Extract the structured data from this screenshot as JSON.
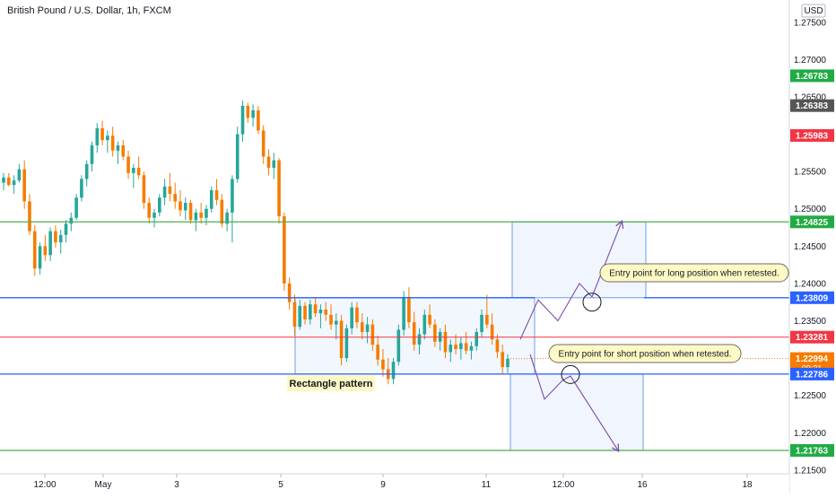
{
  "chart_data": {
    "type": "candlestick",
    "title": "British Pound / U.S. Dollar, 1h, FXCM",
    "currency": "USD",
    "ylim": [
      1.2145,
      1.2775
    ],
    "y_ticks": [
      "1.27500",
      "1.27000",
      "1.26500",
      "1.26000",
      "1.25500",
      "1.25000",
      "1.24500",
      "1.24000",
      "1.23500",
      "1.23000",
      "1.22500",
      "1.22000",
      "1.21500"
    ],
    "x_ticks": [
      "12:00",
      "May",
      "3",
      "5",
      "9",
      "11",
      "12:00",
      "16",
      "18"
    ],
    "price_markers": [
      {
        "label": "1.26783",
        "value": 1.26783,
        "color": "#22ab44"
      },
      {
        "label": "1.26383",
        "value": 1.26383,
        "color": "#555555"
      },
      {
        "label": "1.25983",
        "value": 1.25983,
        "color": "#f23645"
      },
      {
        "label": "1.24825",
        "value": 1.24825,
        "color": "#22ab44"
      },
      {
        "label": "1.23809",
        "value": 1.23809,
        "color": "#2962ff"
      },
      {
        "label": "1.23281",
        "value": 1.23281,
        "color": "#f23645"
      },
      {
        "label": "1.22994",
        "value": 1.22994,
        "color": "#f57c00",
        "sub": "09:21"
      },
      {
        "label": "1.22786",
        "value": 1.22786,
        "color": "#2962ff"
      },
      {
        "label": "1.21763",
        "value": 1.21763,
        "color": "#22ab44"
      }
    ],
    "annotations": {
      "rectangle_label": "Rectangle pattern",
      "long_callout": "Entry point for long position when retested.",
      "short_callout": "Entry point for short position when retested."
    },
    "colors": {
      "up": "#26a69a",
      "down": "#f57c00",
      "green": "#4caf50",
      "blue": "#2962ff",
      "red": "#f23645",
      "purple": "#7b4fa8",
      "box_fill": "#e8eefb",
      "box_stroke": "#6d9eeb"
    },
    "ohlc": [
      [
        1.2535,
        1.2548,
        1.2525,
        1.2542
      ],
      [
        1.2542,
        1.2548,
        1.253,
        1.2532
      ],
      [
        1.2532,
        1.2545,
        1.252,
        1.2538
      ],
      [
        1.2538,
        1.256,
        1.2535,
        1.2553
      ],
      [
        1.2553,
        1.2565,
        1.25,
        1.251
      ],
      [
        1.251,
        1.252,
        1.2465,
        1.247
      ],
      [
        1.247,
        1.2478,
        1.241,
        1.242
      ],
      [
        1.242,
        1.2455,
        1.2412,
        1.245
      ],
      [
        1.245,
        1.2465,
        1.243,
        1.2438
      ],
      [
        1.2438,
        1.2475,
        1.243,
        1.247
      ],
      [
        1.247,
        1.2478,
        1.2448,
        1.2455
      ],
      [
        1.2455,
        1.2472,
        1.244,
        1.2465
      ],
      [
        1.2465,
        1.2485,
        1.2455,
        1.248
      ],
      [
        1.248,
        1.2495,
        1.247,
        1.2488
      ],
      [
        1.2488,
        1.252,
        1.2485,
        1.2515
      ],
      [
        1.2515,
        1.2545,
        1.251,
        1.254
      ],
      [
        1.254,
        1.2565,
        1.253,
        1.256
      ],
      [
        1.256,
        1.259,
        1.255,
        1.2585
      ],
      [
        1.2585,
        1.2615,
        1.2575,
        1.2608
      ],
      [
        1.2608,
        1.2618,
        1.2585,
        1.2592
      ],
      [
        1.2592,
        1.2605,
        1.2575,
        1.2598
      ],
      [
        1.2598,
        1.261,
        1.257,
        1.2578
      ],
      [
        1.2578,
        1.259,
        1.256,
        1.2585
      ],
      [
        1.2585,
        1.2592,
        1.2565,
        1.257
      ],
      [
        1.257,
        1.2578,
        1.254,
        1.2548
      ],
      [
        1.2548,
        1.256,
        1.2528,
        1.2555
      ],
      [
        1.2555,
        1.257,
        1.254,
        1.2545
      ],
      [
        1.2545,
        1.255,
        1.25,
        1.2508
      ],
      [
        1.2508,
        1.2515,
        1.248,
        1.2488
      ],
      [
        1.2488,
        1.25,
        1.2475,
        1.2495
      ],
      [
        1.2495,
        1.252,
        1.249,
        1.2515
      ],
      [
        1.2515,
        1.254,
        1.2505,
        1.253
      ],
      [
        1.253,
        1.2548,
        1.251,
        1.252
      ],
      [
        1.252,
        1.2535,
        1.25,
        1.251
      ],
      [
        1.251,
        1.2525,
        1.249,
        1.2498
      ],
      [
        1.2498,
        1.2515,
        1.2485,
        1.2508
      ],
      [
        1.2508,
        1.2512,
        1.248,
        1.2485
      ],
      [
        1.2485,
        1.25,
        1.247,
        1.2495
      ],
      [
        1.2495,
        1.2508,
        1.248,
        1.2488
      ],
      [
        1.2488,
        1.2505,
        1.2478,
        1.25
      ],
      [
        1.25,
        1.253,
        1.2495,
        1.2525
      ],
      [
        1.2525,
        1.254,
        1.2505,
        1.2512
      ],
      [
        1.2512,
        1.252,
        1.2475,
        1.248
      ],
      [
        1.248,
        1.25,
        1.247,
        1.2495
      ],
      [
        1.2495,
        1.2545,
        1.2455,
        1.254
      ],
      [
        1.254,
        1.261,
        1.2535,
        1.26
      ],
      [
        1.26,
        1.2645,
        1.259,
        1.2638
      ],
      [
        1.2638,
        1.2642,
        1.2615,
        1.2622
      ],
      [
        1.2622,
        1.264,
        1.261,
        1.2632
      ],
      [
        1.2632,
        1.2638,
        1.26,
        1.2605
      ],
      [
        1.2605,
        1.2612,
        1.256,
        1.257
      ],
      [
        1.257,
        1.258,
        1.2545,
        1.2555
      ],
      [
        1.2555,
        1.2575,
        1.254,
        1.2565
      ],
      [
        1.2565,
        1.2568,
        1.248,
        1.249
      ],
      [
        1.249,
        1.2495,
        1.239,
        1.24
      ],
      [
        1.24,
        1.2408,
        1.2365,
        1.2375
      ],
      [
        1.2375,
        1.2385,
        1.233,
        1.2342
      ],
      [
        1.2342,
        1.2378,
        1.2338,
        1.237
      ],
      [
        1.237,
        1.2375,
        1.2345,
        1.2352
      ],
      [
        1.2352,
        1.2378,
        1.2345,
        1.2372
      ],
      [
        1.2372,
        1.238,
        1.2355,
        1.236
      ],
      [
        1.236,
        1.2372,
        1.234,
        1.2365
      ],
      [
        1.2365,
        1.2375,
        1.235,
        1.2358
      ],
      [
        1.2358,
        1.2372,
        1.2338,
        1.2345
      ],
      [
        1.2345,
        1.236,
        1.2325,
        1.235
      ],
      [
        1.235,
        1.2358,
        1.229,
        1.23
      ],
      [
        1.23,
        1.2345,
        1.2295,
        1.234
      ],
      [
        1.234,
        1.2375,
        1.2332,
        1.2368
      ],
      [
        1.2368,
        1.2375,
        1.234,
        1.2348
      ],
      [
        1.2348,
        1.236,
        1.2325,
        1.2335
      ],
      [
        1.2335,
        1.2355,
        1.232,
        1.2345
      ],
      [
        1.2345,
        1.2352,
        1.231,
        1.2318
      ],
      [
        1.2318,
        1.233,
        1.229,
        1.2298
      ],
      [
        1.2298,
        1.2312,
        1.2275,
        1.2285
      ],
      [
        1.2285,
        1.23,
        1.2265,
        1.2272
      ],
      [
        1.2272,
        1.23,
        1.2265,
        1.2295
      ],
      [
        1.2295,
        1.2345,
        1.229,
        1.2338
      ],
      [
        1.2338,
        1.239,
        1.233,
        1.2382
      ],
      [
        1.2382,
        1.2395,
        1.234,
        1.2348
      ],
      [
        1.2348,
        1.2362,
        1.231,
        1.2318
      ],
      [
        1.2318,
        1.234,
        1.2305,
        1.2332
      ],
      [
        1.2332,
        1.2365,
        1.2325,
        1.2358
      ],
      [
        1.2358,
        1.2372,
        1.234,
        1.2345
      ],
      [
        1.2345,
        1.2352,
        1.2315,
        1.2322
      ],
      [
        1.2322,
        1.234,
        1.231,
        1.2335
      ],
      [
        1.2335,
        1.2345,
        1.23,
        1.2308
      ],
      [
        1.2308,
        1.2325,
        1.2295,
        1.2318
      ],
      [
        1.2318,
        1.2332,
        1.2305,
        1.2312
      ],
      [
        1.2312,
        1.2328,
        1.2298,
        1.232
      ],
      [
        1.232,
        1.2335,
        1.2305,
        1.231
      ],
      [
        1.231,
        1.2322,
        1.2298,
        1.2316
      ],
      [
        1.2316,
        1.234,
        1.231,
        1.2335
      ],
      [
        1.2335,
        1.2365,
        1.2328,
        1.2358
      ],
      [
        1.2358,
        1.2385,
        1.234,
        1.2345
      ],
      [
        1.2345,
        1.236,
        1.2318,
        1.2325
      ],
      [
        1.2325,
        1.2332,
        1.23,
        1.2308
      ],
      [
        1.2308,
        1.2318,
        1.2278,
        1.2288
      ],
      [
        1.2288,
        1.2305,
        1.228,
        1.2299
      ]
    ]
  }
}
